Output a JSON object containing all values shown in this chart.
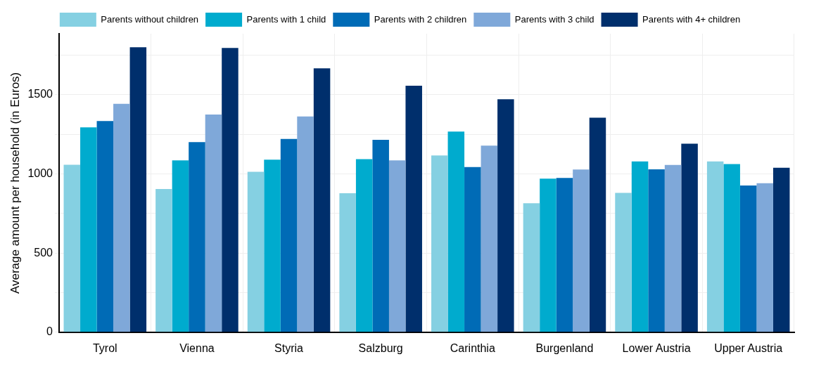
{
  "chart_data": {
    "type": "bar",
    "ylabel": "Average amount per household (in Euros)",
    "categories": [
      "Tyrol",
      "Vienna",
      "Styria",
      "Salzburg",
      "Carinthia",
      "Burgenland",
      "Lower Austria",
      "Upper Austria"
    ],
    "series": [
      {
        "name": "Parents without children",
        "color": "#85d0e2",
        "values": [
          1057,
          904,
          1013,
          878,
          1116,
          815,
          880,
          1079
        ]
      },
      {
        "name": "Parents with 1 child",
        "color": "#00abce",
        "values": [
          1294,
          1085,
          1090,
          1093,
          1267,
          970,
          1079,
          1062
        ]
      },
      {
        "name": "Parents with 2 children",
        "color": "#006bb6",
        "values": [
          1334,
          1200,
          1220,
          1215,
          1043,
          974,
          1029,
          926
        ]
      },
      {
        "name": "Parents with 3 child",
        "color": "#7fa8d9",
        "values": [
          1442,
          1375,
          1362,
          1085,
          1178,
          1028,
          1056,
          941
        ]
      },
      {
        "name": "Parents with 4+ children",
        "color": "#002f6c",
        "values": [
          1800,
          1795,
          1666,
          1557,
          1471,
          1355,
          1190,
          1039
        ]
      }
    ],
    "ylim": [
      0,
      1885
    ],
    "yticks": [
      0,
      {
        "value": 250,
        "label": null
      },
      500,
      {
        "value": 750,
        "label": null
      },
      1000,
      {
        "value": 1250,
        "label": null
      },
      1500,
      {
        "value": 1750,
        "label": null
      }
    ],
    "grid": true,
    "legend": "top"
  }
}
